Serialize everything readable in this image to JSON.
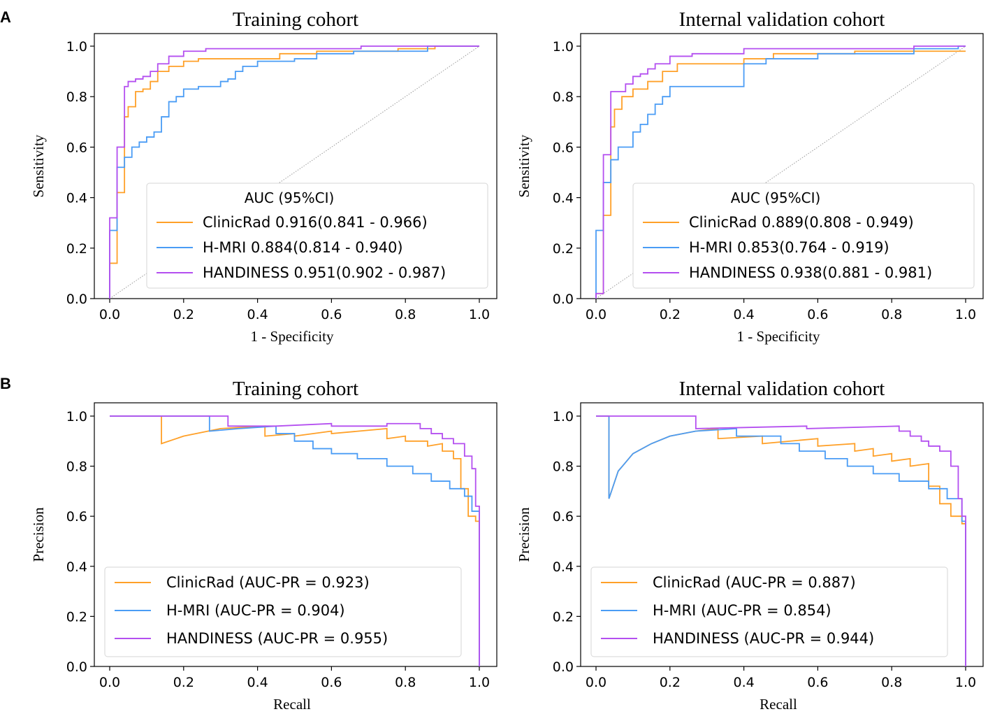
{
  "chart_data": [
    {
      "type": "line",
      "panel": "A",
      "title": "Training cohort",
      "xlabel": "1 - Specificity",
      "ylabel": "Sensitivity",
      "xlim": [
        0,
        1
      ],
      "ylim": [
        0,
        1
      ],
      "xticks": [
        "0.0",
        "0.2",
        "0.4",
        "0.6",
        "0.8",
        "1.0"
      ],
      "yticks": [
        "0.0",
        "0.2",
        "0.4",
        "0.6",
        "0.8",
        "1.0"
      ],
      "legend_title": "AUC (95%CI)",
      "legend_position": "lower-right",
      "series": [
        {
          "name": "ClinicRad 0.916(0.841 - 0.966)",
          "color": "#ffa028",
          "x": [
            0,
            0,
            0.02,
            0.02,
            0.04,
            0.04,
            0.05,
            0.05,
            0.07,
            0.07,
            0.09,
            0.09,
            0.11,
            0.11,
            0.13,
            0.13,
            0.16,
            0.16,
            0.2,
            0.2,
            0.24,
            0.24,
            0.3,
            0.3,
            0.46,
            0.46,
            0.56,
            0.56,
            0.78,
            0.78,
            0.88,
            0.88,
            1
          ],
          "y": [
            0,
            0.14,
            0.14,
            0.42,
            0.42,
            0.72,
            0.72,
            0.76,
            0.76,
            0.82,
            0.82,
            0.83,
            0.83,
            0.86,
            0.86,
            0.9,
            0.9,
            0.92,
            0.92,
            0.94,
            0.94,
            0.95,
            0.95,
            0.95,
            0.95,
            0.97,
            0.97,
            0.98,
            0.98,
            0.99,
            0.99,
            1,
            1
          ]
        },
        {
          "name": "H-MRI 0.884(0.814 - 0.940)",
          "color": "#4a9cf5",
          "x": [
            0,
            0,
            0.02,
            0.02,
            0.04,
            0.04,
            0.06,
            0.06,
            0.08,
            0.08,
            0.1,
            0.1,
            0.12,
            0.12,
            0.14,
            0.14,
            0.16,
            0.16,
            0.18,
            0.18,
            0.2,
            0.2,
            0.24,
            0.24,
            0.3,
            0.3,
            0.32,
            0.32,
            0.34,
            0.34,
            0.36,
            0.36,
            0.4,
            0.4,
            0.5,
            0.5,
            0.56,
            0.56,
            0.66,
            0.66,
            0.86,
            0.86,
            1
          ],
          "y": [
            0,
            0.27,
            0.27,
            0.52,
            0.52,
            0.56,
            0.56,
            0.6,
            0.6,
            0.62,
            0.62,
            0.64,
            0.64,
            0.66,
            0.66,
            0.72,
            0.72,
            0.78,
            0.78,
            0.8,
            0.8,
            0.83,
            0.83,
            0.84,
            0.84,
            0.86,
            0.86,
            0.87,
            0.87,
            0.9,
            0.9,
            0.92,
            0.92,
            0.94,
            0.94,
            0.95,
            0.95,
            0.97,
            0.97,
            0.98,
            0.98,
            1,
            1
          ]
        },
        {
          "name": "HANDINESS 0.951(0.902 - 0.987)",
          "color": "#b44ff0",
          "x": [
            0,
            0,
            0.02,
            0.02,
            0.04,
            0.04,
            0.05,
            0.05,
            0.07,
            0.07,
            0.09,
            0.09,
            0.11,
            0.11,
            0.13,
            0.13,
            0.14,
            0.14,
            0.16,
            0.16,
            0.2,
            0.2,
            0.26,
            0.26,
            0.68,
            0.68,
            1
          ],
          "y": [
            0,
            0.32,
            0.32,
            0.6,
            0.6,
            0.84,
            0.84,
            0.86,
            0.86,
            0.87,
            0.87,
            0.88,
            0.88,
            0.9,
            0.9,
            0.93,
            0.93,
            0.93,
            0.93,
            0.96,
            0.96,
            0.98,
            0.98,
            0.99,
            0.99,
            1,
            1
          ]
        }
      ]
    },
    {
      "type": "line",
      "panel": "",
      "title": "Internal validation cohort",
      "xlabel": "1 - Specificity",
      "ylabel": "Sensitivity",
      "xlim": [
        0,
        1
      ],
      "ylim": [
        0,
        1
      ],
      "xticks": [
        "0.0",
        "0.2",
        "0.4",
        "0.6",
        "0.8",
        "1.0"
      ],
      "yticks": [
        "0.0",
        "0.2",
        "0.4",
        "0.6",
        "0.8",
        "1.0"
      ],
      "legend_title": "AUC (95%CI)",
      "legend_position": "lower-right",
      "series": [
        {
          "name": "ClinicRad 0.889(0.808 - 0.949)",
          "color": "#ffa028",
          "x": [
            0,
            0,
            0.02,
            0.02,
            0.04,
            0.04,
            0.05,
            0.05,
            0.07,
            0.07,
            0.1,
            0.1,
            0.14,
            0.14,
            0.18,
            0.18,
            0.22,
            0.22,
            0.4,
            0.4,
            0.48,
            0.48,
            0.7,
            0.7,
            1
          ],
          "y": [
            0,
            0.02,
            0.02,
            0.33,
            0.33,
            0.68,
            0.68,
            0.75,
            0.75,
            0.8,
            0.8,
            0.83,
            0.83,
            0.86,
            0.86,
            0.9,
            0.9,
            0.93,
            0.93,
            0.95,
            0.95,
            0.97,
            0.97,
            0.98,
            0.98
          ]
        },
        {
          "name": "H-MRI 0.853(0.764 - 0.919)",
          "color": "#4a9cf5",
          "x": [
            0,
            0,
            0.02,
            0.02,
            0.04,
            0.04,
            0.06,
            0.06,
            0.1,
            0.1,
            0.12,
            0.12,
            0.14,
            0.14,
            0.16,
            0.16,
            0.18,
            0.18,
            0.2,
            0.2,
            0.24,
            0.24,
            0.4,
            0.4,
            0.46,
            0.46,
            0.6,
            0.6,
            0.86,
            0.86,
            0.98,
            0.98,
            1
          ],
          "y": [
            0,
            0.27,
            0.27,
            0.46,
            0.46,
            0.55,
            0.55,
            0.6,
            0.6,
            0.66,
            0.66,
            0.69,
            0.69,
            0.73,
            0.73,
            0.77,
            0.77,
            0.8,
            0.8,
            0.84,
            0.84,
            0.84,
            0.84,
            0.93,
            0.93,
            0.95,
            0.95,
            0.97,
            0.97,
            0.99,
            0.99,
            1,
            1
          ]
        },
        {
          "name": "HANDINESS 0.938(0.881 - 0.981)",
          "color": "#b44ff0",
          "x": [
            0,
            0,
            0.02,
            0.02,
            0.04,
            0.04,
            0.08,
            0.08,
            0.1,
            0.1,
            0.12,
            0.12,
            0.14,
            0.14,
            0.16,
            0.16,
            0.2,
            0.2,
            0.26,
            0.26,
            0.4,
            0.4,
            0.86,
            0.86,
            1
          ],
          "y": [
            0,
            0.02,
            0.02,
            0.57,
            0.57,
            0.82,
            0.82,
            0.85,
            0.85,
            0.88,
            0.88,
            0.89,
            0.89,
            0.91,
            0.91,
            0.93,
            0.93,
            0.96,
            0.96,
            0.97,
            0.97,
            0.99,
            0.99,
            1,
            1
          ]
        }
      ]
    },
    {
      "type": "line",
      "panel": "B",
      "title": "Training cohort",
      "xlabel": "Recall",
      "ylabel": "Precision",
      "xlim": [
        0,
        1
      ],
      "ylim": [
        0,
        1.05
      ],
      "xticks": [
        "0.0",
        "0.2",
        "0.4",
        "0.6",
        "0.8",
        "1.0"
      ],
      "yticks": [
        "0.0",
        "0.2",
        "0.4",
        "0.6",
        "0.8",
        "1.0"
      ],
      "legend_position": "lower-left",
      "series": [
        {
          "name": "ClinicRad (AUC-PR = 0.923)",
          "color": "#ffa028",
          "x": [
            0,
            0.14,
            0.14,
            0.2,
            0.3,
            0.42,
            0.42,
            0.5,
            0.5,
            0.6,
            0.6,
            0.75,
            0.75,
            0.8,
            0.8,
            0.86,
            0.86,
            0.9,
            0.9,
            0.93,
            0.93,
            0.95,
            0.95,
            0.97,
            0.97,
            0.99,
            0.99,
            1,
            1
          ],
          "y": [
            1,
            1,
            0.89,
            0.92,
            0.95,
            0.96,
            0.92,
            0.93,
            0.92,
            0.94,
            0.93,
            0.95,
            0.91,
            0.92,
            0.9,
            0.9,
            0.88,
            0.89,
            0.86,
            0.86,
            0.83,
            0.83,
            0.71,
            0.71,
            0.6,
            0.6,
            0.58,
            0.58,
            0
          ]
        },
        {
          "name": "H-MRI (AUC-PR = 0.904)",
          "color": "#4a9cf5",
          "x": [
            0,
            0.27,
            0.27,
            0.35,
            0.45,
            0.45,
            0.5,
            0.5,
            0.55,
            0.55,
            0.6,
            0.6,
            0.67,
            0.67,
            0.75,
            0.75,
            0.82,
            0.82,
            0.87,
            0.87,
            0.92,
            0.92,
            0.96,
            0.96,
            0.98,
            0.98,
            1,
            1
          ],
          "y": [
            1,
            1,
            0.94,
            0.95,
            0.96,
            0.93,
            0.93,
            0.9,
            0.9,
            0.87,
            0.87,
            0.85,
            0.85,
            0.83,
            0.83,
            0.8,
            0.8,
            0.77,
            0.77,
            0.74,
            0.74,
            0.71,
            0.71,
            0.68,
            0.68,
            0.62,
            0.62,
            0
          ]
        },
        {
          "name": "HANDINESS (AUC-PR = 0.955)",
          "color": "#b44ff0",
          "x": [
            0,
            0.32,
            0.32,
            0.45,
            0.6,
            0.6,
            0.75,
            0.75,
            0.84,
            0.84,
            0.87,
            0.87,
            0.9,
            0.9,
            0.93,
            0.93,
            0.96,
            0.96,
            0.98,
            0.98,
            0.99,
            0.99,
            1,
            1
          ],
          "y": [
            1,
            1,
            0.96,
            0.96,
            0.97,
            0.96,
            0.96,
            0.97,
            0.97,
            0.95,
            0.95,
            0.93,
            0.93,
            0.91,
            0.91,
            0.89,
            0.89,
            0.84,
            0.84,
            0.79,
            0.79,
            0.64,
            0.64,
            0
          ]
        }
      ]
    },
    {
      "type": "line",
      "panel": "",
      "title": "Internal validation cohort",
      "xlabel": "Recall",
      "ylabel": "Precision",
      "xlim": [
        0,
        1
      ],
      "ylim": [
        0,
        1.05
      ],
      "xticks": [
        "0.0",
        "0.2",
        "0.4",
        "0.6",
        "0.8",
        "1.0"
      ],
      "yticks": [
        "0.0",
        "0.2",
        "0.4",
        "0.6",
        "0.8",
        "1.0"
      ],
      "legend_position": "lower-left",
      "series": [
        {
          "name": "ClinicRad (AUC-PR = 0.887)",
          "color": "#ffa028",
          "x": [
            0,
            0.035,
            0.035,
            0.06,
            0.1,
            0.15,
            0.2,
            0.27,
            0.33,
            0.33,
            0.45,
            0.45,
            0.6,
            0.6,
            0.7,
            0.7,
            0.75,
            0.75,
            0.8,
            0.8,
            0.85,
            0.85,
            0.9,
            0.9,
            0.93,
            0.93,
            0.96,
            0.96,
            0.99,
            0.99,
            1,
            1
          ],
          "y": [
            1,
            1,
            0.67,
            0.78,
            0.85,
            0.89,
            0.92,
            0.94,
            0.95,
            0.91,
            0.92,
            0.89,
            0.91,
            0.88,
            0.89,
            0.86,
            0.87,
            0.84,
            0.85,
            0.82,
            0.83,
            0.8,
            0.81,
            0.72,
            0.72,
            0.65,
            0.65,
            0.6,
            0.6,
            0.57,
            0.57,
            0
          ]
        },
        {
          "name": "H-MRI (AUC-PR = 0.854)",
          "color": "#4a9cf5",
          "x": [
            0,
            0.035,
            0.035,
            0.06,
            0.1,
            0.15,
            0.2,
            0.27,
            0.38,
            0.38,
            0.5,
            0.5,
            0.55,
            0.55,
            0.62,
            0.62,
            0.68,
            0.68,
            0.75,
            0.75,
            0.82,
            0.82,
            0.9,
            0.9,
            0.95,
            0.95,
            0.99,
            0.99,
            1,
            1
          ],
          "y": [
            1,
            1,
            0.67,
            0.78,
            0.85,
            0.89,
            0.92,
            0.94,
            0.95,
            0.92,
            0.92,
            0.89,
            0.89,
            0.86,
            0.86,
            0.83,
            0.83,
            0.8,
            0.8,
            0.77,
            0.77,
            0.74,
            0.74,
            0.71,
            0.71,
            0.67,
            0.67,
            0.58,
            0.58,
            0
          ]
        },
        {
          "name": "HANDINESS (AUC-PR = 0.944)",
          "color": "#b44ff0",
          "x": [
            0,
            0.27,
            0.27,
            0.57,
            0.57,
            0.82,
            0.82,
            0.85,
            0.85,
            0.88,
            0.88,
            0.9,
            0.9,
            0.93,
            0.93,
            0.96,
            0.96,
            0.98,
            0.98,
            0.99,
            0.99,
            1,
            1
          ],
          "y": [
            1,
            1,
            0.95,
            0.96,
            0.95,
            0.96,
            0.94,
            0.94,
            0.92,
            0.92,
            0.9,
            0.9,
            0.88,
            0.88,
            0.86,
            0.86,
            0.8,
            0.8,
            0.67,
            0.67,
            0.6,
            0.6,
            0
          ]
        }
      ]
    }
  ]
}
